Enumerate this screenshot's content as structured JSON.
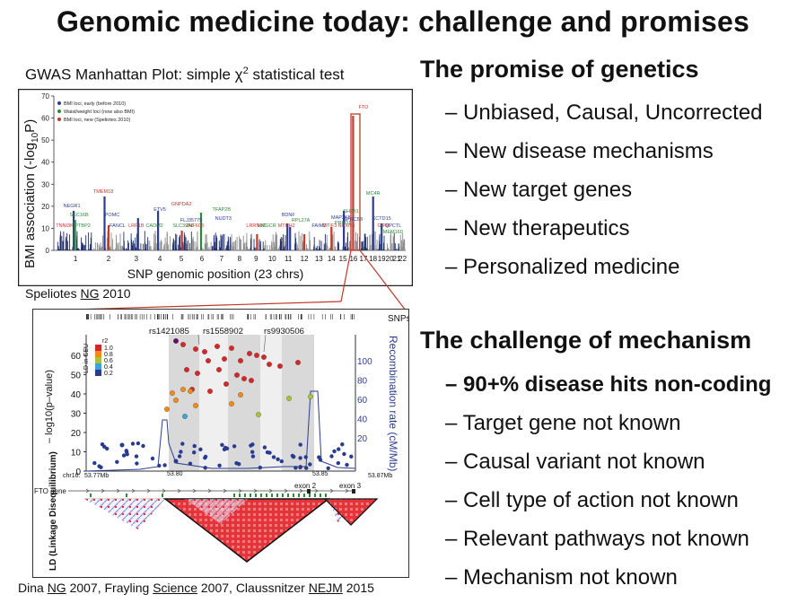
{
  "title": "Genomic medicine today: challenge and promises",
  "gwas_caption": {
    "prefix": "GWAS Manhattan Plot: simple χ",
    "sup": "2",
    "suffix": " statistical test"
  },
  "promise": {
    "heading": "The promise of genetics",
    "items": [
      "– Unbiased, Causal, Uncorrected",
      "– New disease mechanisms",
      "– New target genes",
      "– New therapeutics",
      "– Personalized medicine"
    ]
  },
  "challenge": {
    "heading": "The challenge of mechanism",
    "items": [
      "– 90+% disease hits non-coding",
      "– Target gene not known",
      "– Causal variant not known",
      "– Cell type of action not known",
      "– Relevant pathways not known",
      "– Mechanism not known"
    ]
  },
  "citation_top": {
    "author": "Speliotes ",
    "journal": "NG",
    "year": " 2010"
  },
  "citation_bottom": {
    "a1": "Dina ",
    "j1": "NG",
    "y1": " 2007, Frayling ",
    "j2": "Science",
    "y2": " 2007, Claussnitzer ",
    "j3": "NEJM",
    "y3": " 2015"
  },
  "manhattan": {
    "ylabel_main": "BMI association (-log",
    "ylabel_sub": "10",
    "ylabel_end": "P)",
    "xlabel": "SNP genomic position (23 chrs)",
    "y_ticks": [
      "0",
      "10",
      "20",
      "30",
      "40",
      "50",
      "60",
      "70"
    ],
    "chromosomes": [
      "1",
      "2",
      "3",
      "4",
      "5",
      "6",
      "7",
      "8",
      "9",
      "10",
      "11",
      "12",
      "13",
      "14",
      "15",
      "16",
      "17",
      "18",
      "19",
      "20",
      "21",
      "22"
    ],
    "legend": [
      "BMI loci, early (before 2010)",
      "Waist/weight loci (now also BMI)",
      "BMI loci, new (Speliotes 2010)"
    ],
    "legend_colors": [
      "#2c3e8f",
      "#2a8a3a",
      "#c0392b"
    ],
    "gene_labels": [
      "NEGR1",
      "TMEM18",
      "SEC16B",
      "POMC",
      "TNNI3K",
      "PTBP2",
      "FANCL",
      "LRP1B",
      "CADM2",
      "ETV5",
      "GNPDA2",
      "SLC39A8",
      "FLJ35779",
      "ZNF608",
      "TFAP2B",
      "NUDT3",
      "LRRN6C",
      "HMGCR",
      "BDNF",
      "MTCH2",
      "RPL27A",
      "FAIM2",
      "MTIF3",
      "PRKD1",
      "MAP2K5",
      "NRXN3",
      "SH2B1",
      "GPRC5B",
      "FTO",
      "MC4R",
      "KCTD15",
      "GIPR",
      "TMEM160",
      "QPCTL"
    ]
  },
  "regional": {
    "y_ticks": [
      "0",
      "10",
      "20",
      "30",
      "40",
      "50",
      "60"
    ],
    "r_ticks": [
      "20",
      "40",
      "60",
      "80",
      "100"
    ],
    "ylabel": "– log10(p–value)",
    "rlabel": "Recombination rate (cM/Mb)",
    "snps_label": "SNPs",
    "snp_labels": [
      "rs1421085",
      "rs1558902",
      "rs9930506"
    ],
    "legend_title": "LD in CEU",
    "legend_r2": "r2",
    "legend_levels": [
      "1.0",
      "0.8",
      "0.6",
      "0.4",
      "0.2"
    ],
    "legend_colors": [
      "#d62728",
      "#f08a1c",
      "#a8c23a",
      "#3ba6d0",
      "#2a3a8f"
    ],
    "positions": [
      "chr16:",
      "53.77Mb",
      "53.80",
      "53.85",
      "53.87Mb"
    ],
    "gene_label": "FTO gene",
    "exons": [
      "exon 2",
      "exon 3"
    ],
    "ld_label": "LD (Linkage Disequilibrium)"
  }
}
